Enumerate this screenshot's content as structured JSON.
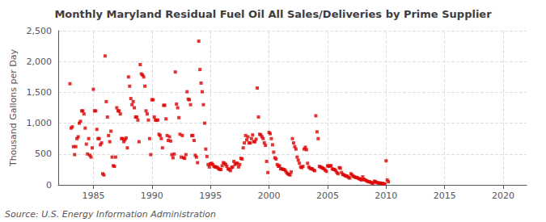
{
  "chart_data": {
    "type": "scatter",
    "title": "Monthly Maryland Residual Fuel Oil All Sales/Deliveries by Prime Supplier",
    "ylabel": "Thousand Gallons per Day",
    "source": "Source: U.S. Energy Information Administration",
    "color": "#dd0000",
    "marker": "square",
    "grid": true,
    "xlim": [
      1982,
      2022
    ],
    "xticks": [
      1985,
      1990,
      1995,
      2000,
      2005,
      2010,
      2015,
      2020
    ],
    "ylim": [
      0,
      2500
    ],
    "yticks": [
      0,
      500,
      {
        "value": 1000,
        "label": "1,000"
      },
      {
        "value": 1500,
        "label": "1,500"
      },
      {
        "value": 2000,
        "label": "2,000"
      },
      {
        "value": 2500,
        "label": "2,500"
      }
    ],
    "x": [
      1983.0,
      1983.1,
      1983.2,
      1983.3,
      1983.4,
      1983.5,
      1983.6,
      1983.7,
      1983.8,
      1983.9,
      1984.0,
      1984.1,
      1984.2,
      1984.3,
      1984.4,
      1984.5,
      1984.6,
      1984.7,
      1984.8,
      1984.9,
      1985.0,
      1985.1,
      1985.2,
      1985.3,
      1985.4,
      1985.5,
      1985.6,
      1985.7,
      1985.8,
      1985.9,
      1986.0,
      1986.1,
      1986.2,
      1986.3,
      1986.4,
      1986.5,
      1986.6,
      1986.7,
      1986.8,
      1986.9,
      1987.0,
      1987.1,
      1987.2,
      1987.3,
      1987.4,
      1987.5,
      1987.6,
      1987.7,
      1987.8,
      1987.9,
      1988.0,
      1988.1,
      1988.2,
      1988.3,
      1988.4,
      1988.5,
      1988.6,
      1988.7,
      1988.8,
      1988.9,
      1989.0,
      1989.1,
      1989.2,
      1989.3,
      1989.4,
      1989.5,
      1989.6,
      1989.7,
      1989.8,
      1989.9,
      1990.0,
      1990.1,
      1990.2,
      1990.3,
      1990.4,
      1990.5,
      1990.6,
      1990.7,
      1990.8,
      1990.9,
      1991.0,
      1991.1,
      1991.2,
      1991.3,
      1991.4,
      1991.5,
      1991.6,
      1991.7,
      1991.8,
      1991.9,
      1992.0,
      1992.1,
      1992.2,
      1992.3,
      1992.4,
      1992.5,
      1992.6,
      1992.7,
      1992.8,
      1992.9,
      1993.0,
      1993.1,
      1993.2,
      1993.3,
      1993.4,
      1993.5,
      1993.6,
      1993.7,
      1993.8,
      1993.9,
      1994.0,
      1994.1,
      1994.2,
      1994.3,
      1994.4,
      1994.5,
      1994.6,
      1994.7,
      1994.8,
      1994.9,
      1995.0,
      1995.1,
      1995.2,
      1995.3,
      1995.4,
      1995.5,
      1995.6,
      1995.7,
      1995.8,
      1995.9,
      1996.0,
      1996.1,
      1996.2,
      1996.3,
      1996.4,
      1996.5,
      1996.6,
      1996.7,
      1996.8,
      1996.9,
      1997.0,
      1997.1,
      1997.2,
      1997.3,
      1997.4,
      1997.5,
      1997.6,
      1997.7,
      1997.8,
      1997.9,
      1998.0,
      1998.1,
      1998.2,
      1998.3,
      1998.4,
      1998.5,
      1998.6,
      1998.7,
      1998.8,
      1998.9,
      1999.0,
      1999.1,
      1999.2,
      1999.3,
      1999.4,
      1999.5,
      1999.6,
      1999.7,
      1999.8,
      1999.9,
      2000.0,
      2000.1,
      2000.2,
      2000.3,
      2000.4,
      2000.5,
      2000.6,
      2000.7,
      2000.8,
      2000.9,
      2001.0,
      2001.1,
      2001.2,
      2001.3,
      2001.4,
      2001.5,
      2001.6,
      2001.7,
      2001.8,
      2001.9,
      2002.0,
      2002.1,
      2002.2,
      2002.3,
      2002.4,
      2002.5,
      2002.6,
      2002.7,
      2002.8,
      2002.9,
      2003.0,
      2003.1,
      2003.2,
      2003.3,
      2003.4,
      2003.5,
      2003.6,
      2003.7,
      2003.8,
      2003.9,
      2004.0,
      2004.1,
      2004.2,
      2004.3,
      2004.4,
      2004.5,
      2004.6,
      2004.7,
      2004.8,
      2004.9,
      2005.0,
      2005.1,
      2005.2,
      2005.3,
      2005.4,
      2005.5,
      2005.6,
      2005.7,
      2005.8,
      2005.9,
      2006.0,
      2006.1,
      2006.2,
      2006.3,
      2006.4,
      2006.5,
      2006.6,
      2006.7,
      2006.8,
      2006.9,
      2007.0,
      2007.1,
      2007.2,
      2007.3,
      2007.4,
      2007.5,
      2007.6,
      2007.7,
      2007.8,
      2007.9,
      2008.0,
      2008.1,
      2008.2,
      2008.3,
      2008.4,
      2008.5,
      2008.6,
      2008.7,
      2008.8,
      2008.9,
      2009.0,
      2009.1,
      2009.2,
      2009.3,
      2009.4,
      2009.5,
      2009.6,
      2009.7,
      2009.8,
      2009.9,
      2010.0,
      2010.1,
      2010.2
    ],
    "values": [
      1640,
      920,
      940,
      620,
      490,
      620,
      750,
      780,
      1000,
      1030,
      1200,
      1200,
      1150,
      920,
      660,
      500,
      750,
      480,
      450,
      600,
      1550,
      1200,
      1200,
      900,
      750,
      750,
      650,
      680,
      180,
      160,
      2090,
      1350,
      1100,
      800,
      700,
      870,
      450,
      310,
      300,
      450,
      1250,
      1200,
      1200,
      1150,
      750,
      750,
      700,
      730,
      760,
      600,
      1750,
      1600,
      1400,
      1300,
      1350,
      1250,
      1100,
      1100,
      1050,
      700,
      1950,
      1800,
      1780,
      1750,
      1600,
      1200,
      1150,
      1050,
      750,
      490,
      1380,
      1380,
      1100,
      1050,
      1050,
      1050,
      820,
      800,
      750,
      600,
      1290,
      1290,
      1070,
      800,
      720,
      780,
      710,
      490,
      440,
      500,
      1830,
      1310,
      1250,
      1090,
      820,
      450,
      800,
      440,
      430,
      490,
      1510,
      1390,
      1380,
      1300,
      800,
      800,
      720,
      480,
      450,
      360,
      2330,
      1870,
      1650,
      1510,
      1300,
      1000,
      580,
      460,
      330,
      290,
      340,
      350,
      330,
      300,
      290,
      290,
      280,
      260,
      250,
      250,
      310,
      360,
      350,
      330,
      300,
      260,
      250,
      230,
      280,
      290,
      380,
      330,
      350,
      350,
      290,
      330,
      430,
      420,
      600,
      680,
      800,
      730,
      780,
      680,
      680,
      750,
      810,
      700,
      700,
      740,
      1570,
      1100,
      820,
      810,
      780,
      750,
      680,
      640,
      380,
      200,
      850,
      830,
      750,
      650,
      530,
      440,
      420,
      330,
      300,
      310,
      260,
      260,
      250,
      250,
      230,
      200,
      180,
      170,
      160,
      210,
      750,
      680,
      620,
      580,
      450,
      400,
      350,
      290,
      280,
      300,
      580,
      610,
      570,
      350,
      290,
      270,
      260,
      260,
      240,
      230,
      1120,
      860,
      750,
      300,
      290,
      280,
      270,
      260,
      240,
      220,
      310,
      300,
      310,
      310,
      260,
      250,
      250,
      230,
      200,
      180,
      280,
      270,
      200,
      170,
      160,
      150,
      140,
      140,
      120,
      110,
      180,
      160,
      140,
      130,
      120,
      120,
      110,
      100,
      90,
      80,
      130,
      90,
      80,
      70,
      60,
      50,
      50,
      40,
      30,
      30,
      60,
      50,
      40,
      30,
      30,
      30,
      25,
      20,
      20,
      15,
      390,
      80,
      50
    ]
  }
}
